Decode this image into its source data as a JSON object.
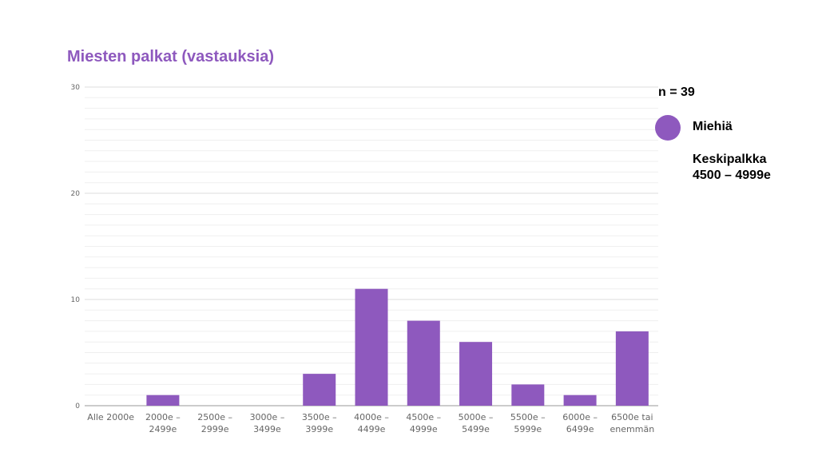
{
  "chart_data": {
    "type": "bar",
    "title": "Miesten palkat (vastauksia)",
    "categories": [
      [
        "Alle 2000e"
      ],
      [
        "2000e –",
        "2499e"
      ],
      [
        "2500e –",
        "2999e"
      ],
      [
        "3000e –",
        "3499e"
      ],
      [
        "3500e –",
        "3999e"
      ],
      [
        "4000e –",
        "4499e"
      ],
      [
        "4500e –",
        "4999e"
      ],
      [
        "5000e –",
        "5499e"
      ],
      [
        "5500e –",
        "5999e"
      ],
      [
        "6000e –",
        "6499e"
      ],
      [
        "6500e tai",
        "enemmän"
      ]
    ],
    "series": [
      {
        "name": "Miehiä",
        "values": [
          0,
          1,
          0,
          0,
          3,
          11,
          8,
          6,
          2,
          1,
          7
        ]
      }
    ],
    "ylim": [
      0,
      30
    ],
    "yticks": [
      0,
      10,
      20,
      30
    ],
    "grid": true,
    "legend_position": "right",
    "colors": {
      "bar": "#8e59be",
      "grid": "#e6e6e6",
      "axis": "#999999",
      "tick_text": "#666666"
    }
  },
  "side": {
    "n_label": "n = 39",
    "legend_label": "Miehiä",
    "avg_title": "Keskipalkka",
    "avg_value": "4500 – 4999e"
  }
}
